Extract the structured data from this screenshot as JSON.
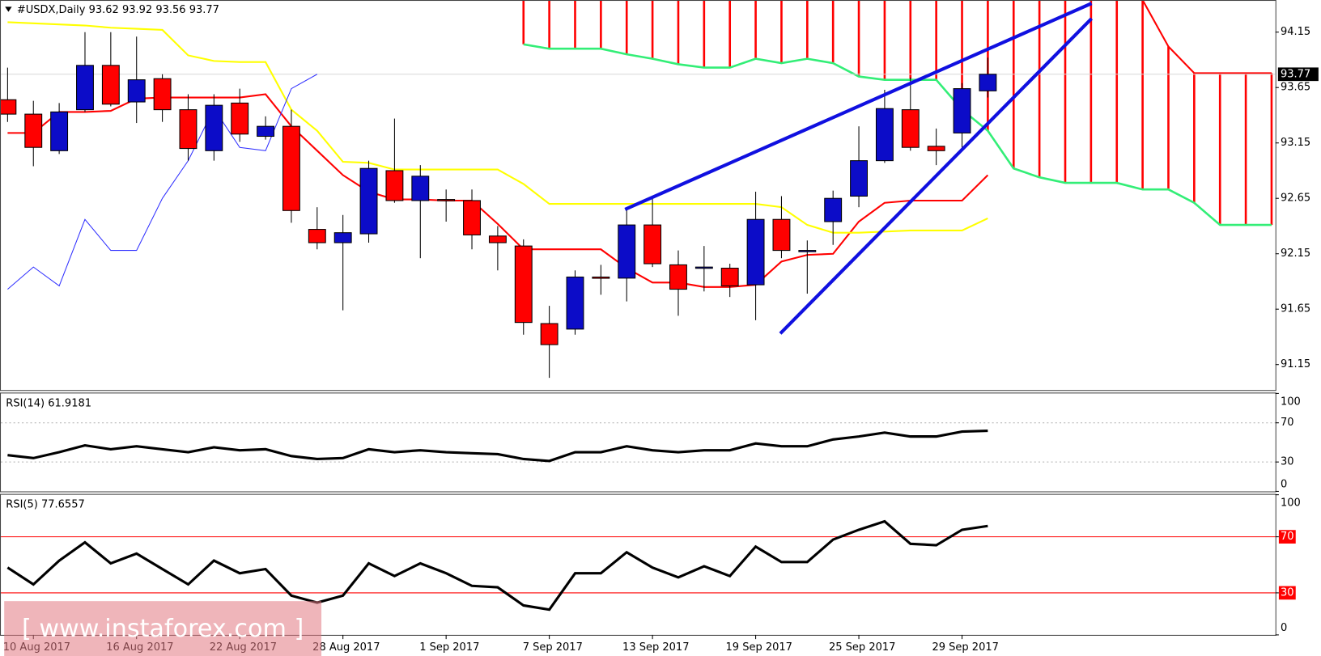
{
  "chart_data": [
    {
      "type": "candlestick",
      "title": "#USDX,Daily  93.62 93.92 93.56 93.77",
      "categories": [
        null,
        "10 Aug 2017",
        null,
        null,
        null,
        "16 Aug 2017",
        null,
        null,
        null,
        "22 Aug 2017",
        null,
        null,
        null,
        "28 Aug 2017",
        null,
        null,
        null,
        "1 Sep 2017",
        null,
        null,
        null,
        "7 Sep 2017",
        null,
        null,
        null,
        "13 Sep 2017",
        null,
        null,
        null,
        "19 Sep 2017",
        null,
        null,
        null,
        "25 Sep 2017",
        null,
        null,
        null,
        "29 Sep 2017",
        null
      ],
      "open": [
        93.54,
        93.41,
        93.08,
        93.45,
        93.85,
        93.52,
        93.73,
        93.45,
        93.08,
        93.51,
        93.21,
        93.3,
        92.37,
        92.25,
        92.33,
        92.9,
        92.63,
        92.64,
        92.63,
        92.31,
        92.22,
        91.52,
        91.47,
        91.94,
        91.93,
        92.41,
        92.05,
        92.03,
        92.02,
        91.87,
        92.46,
        92.18,
        92.44,
        92.67,
        92.99,
        93.45,
        93.12,
        93.24,
        93.62
      ],
      "high": [
        93.83,
        93.53,
        93.51,
        94.15,
        94.15,
        94.11,
        93.77,
        93.59,
        93.59,
        93.64,
        93.39,
        93.45,
        92.57,
        92.5,
        92.99,
        93.37,
        92.95,
        92.73,
        92.73,
        92.4,
        92.28,
        91.68,
        92.0,
        92.05,
        92.55,
        92.67,
        92.18,
        92.22,
        92.06,
        92.71,
        92.67,
        92.27,
        92.72,
        93.3,
        93.63,
        93.74,
        93.28,
        93.69,
        93.92
      ],
      "low": [
        93.34,
        92.94,
        93.05,
        93.43,
        93.48,
        93.33,
        93.34,
        92.99,
        92.99,
        93.16,
        93.18,
        92.43,
        92.19,
        91.64,
        92.25,
        92.61,
        92.11,
        92.44,
        92.19,
        92.0,
        91.42,
        91.03,
        91.42,
        91.78,
        91.72,
        92.03,
        91.59,
        91.81,
        91.76,
        91.55,
        92.11,
        91.79,
        92.23,
        92.57,
        92.97,
        93.08,
        92.95,
        93.08,
        93.56
      ],
      "close": [
        93.41,
        93.11,
        93.43,
        93.85,
        93.5,
        93.72,
        93.45,
        93.1,
        93.49,
        93.23,
        93.3,
        92.54,
        92.25,
        92.34,
        92.92,
        92.63,
        92.85,
        92.63,
        92.32,
        92.25,
        91.53,
        91.33,
        91.94,
        91.93,
        92.41,
        92.06,
        91.83,
        92.03,
        91.86,
        92.46,
        92.18,
        92.18,
        92.65,
        92.99,
        93.46,
        93.11,
        93.08,
        93.64,
        93.77
      ],
      "up_color": "#0c0cc8",
      "down_color": "#ff0000",
      "lines": [
        {
          "color": "#ff0000",
          "values": [
            93.24,
            93.24,
            93.43,
            93.43,
            93.44,
            93.55,
            93.56,
            93.56,
            93.56,
            93.56,
            93.59,
            93.3,
            93.08,
            92.86,
            92.71,
            92.64,
            92.64,
            92.63,
            92.63,
            92.42,
            92.19,
            92.19,
            92.19,
            92.19,
            92.02,
            91.89,
            91.89,
            91.85,
            91.85,
            91.87,
            92.08,
            92.14,
            92.15,
            92.44,
            92.61,
            92.63,
            92.63,
            92.63,
            92.86
          ]
        },
        {
          "color": "#ffff00",
          "values": [
            94.24,
            94.23,
            94.22,
            94.21,
            94.19,
            94.18,
            94.17,
            93.94,
            93.89,
            93.88,
            93.88,
            93.45,
            93.26,
            92.98,
            92.97,
            92.91,
            92.91,
            92.91,
            92.91,
            92.91,
            92.78,
            92.6,
            92.6,
            92.6,
            92.6,
            92.6,
            92.6,
            92.6,
            92.6,
            92.6,
            92.57,
            92.41,
            92.34,
            92.34,
            92.35,
            92.36,
            92.36,
            92.36,
            92.47
          ]
        },
        {
          "color": "#3030ff",
          "values": [
            91.83,
            92.03,
            91.86,
            92.46,
            92.18,
            92.18,
            92.65,
            92.99,
            93.46,
            93.11,
            93.08,
            93.64,
            93.77,
            null,
            null,
            null,
            null,
            null,
            null,
            null,
            null,
            null,
            null,
            null,
            null,
            null,
            null,
            null,
            null,
            null,
            null,
            null,
            null,
            null,
            null,
            null,
            null,
            null,
            null
          ]
        }
      ],
      "cloud": {
        "upper": {
          "color": "#ff0000",
          "values": [
            null,
            null,
            null,
            null,
            null,
            null,
            null,
            null,
            null,
            null,
            null,
            null,
            null,
            null,
            null,
            null,
            null,
            null,
            null,
            null,
            null,
            null,
            null,
            null,
            null,
            null,
            null,
            null,
            null,
            null,
            null,
            null,
            null,
            null,
            null,
            null,
            null,
            null,
            null,
            null,
            null,
            null,
            null,
            null,
            94.44,
            94.02,
            93.78,
            93.78,
            93.78,
            93.78
          ]
        },
        "lower": {
          "color": "#33ee77",
          "values": [
            null,
            null,
            null,
            null,
            null,
            null,
            null,
            null,
            null,
            null,
            null,
            null,
            null,
            null,
            null,
            null,
            null,
            null,
            null,
            null,
            94.04,
            94.0,
            94.0,
            94.0,
            93.95,
            93.91,
            93.86,
            93.83,
            93.83,
            93.91,
            93.87,
            93.91,
            93.87,
            93.75,
            93.72,
            93.72,
            93.72,
            93.45,
            93.26,
            92.92,
            92.84,
            92.79,
            92.79,
            92.79,
            92.73,
            92.73,
            92.61,
            92.41,
            92.41,
            92.41
          ]
        }
      },
      "ylim": [
        90.92,
        94.44
      ],
      "yticks": [
        94.15,
        93.65,
        93.15,
        92.65,
        92.15,
        91.65,
        91.15
      ]
    },
    {
      "type": "line",
      "title": "RSI(14) 61.9181",
      "color": "#000000",
      "values": [
        37,
        34,
        40,
        47,
        43,
        46,
        43,
        40,
        45,
        42,
        43,
        36,
        33,
        34,
        43,
        40,
        42,
        40,
        39,
        38,
        33,
        31,
        40,
        40,
        46,
        42,
        40,
        42,
        42,
        49,
        46,
        46,
        53,
        56,
        60,
        56,
        56,
        61,
        61.9
      ],
      "ylim": [
        0,
        100
      ],
      "yticks": [
        100,
        70,
        30,
        0
      ],
      "levels": [
        70,
        30
      ],
      "level_color": "#b0b0b0",
      "level_style": "dotted"
    },
    {
      "type": "line",
      "title": "RSI(5) 77.6557",
      "color": "#000000",
      "values": [
        48,
        36,
        53,
        66,
        51,
        58,
        47,
        36,
        53,
        44,
        47,
        28,
        23,
        28,
        51,
        42,
        51,
        44,
        35,
        34,
        21,
        18,
        44,
        44,
        59,
        48,
        41,
        49,
        42,
        63,
        52,
        52,
        68,
        75,
        81,
        65,
        64,
        75,
        77.7
      ],
      "ylim": [
        0,
        100
      ],
      "yticks": [
        100,
        70,
        30,
        0
      ],
      "levels": [
        70,
        30
      ],
      "level_color": "#ff0000",
      "level_style": "solid"
    }
  ],
  "watermark": "[ www.instaforex.com ]"
}
